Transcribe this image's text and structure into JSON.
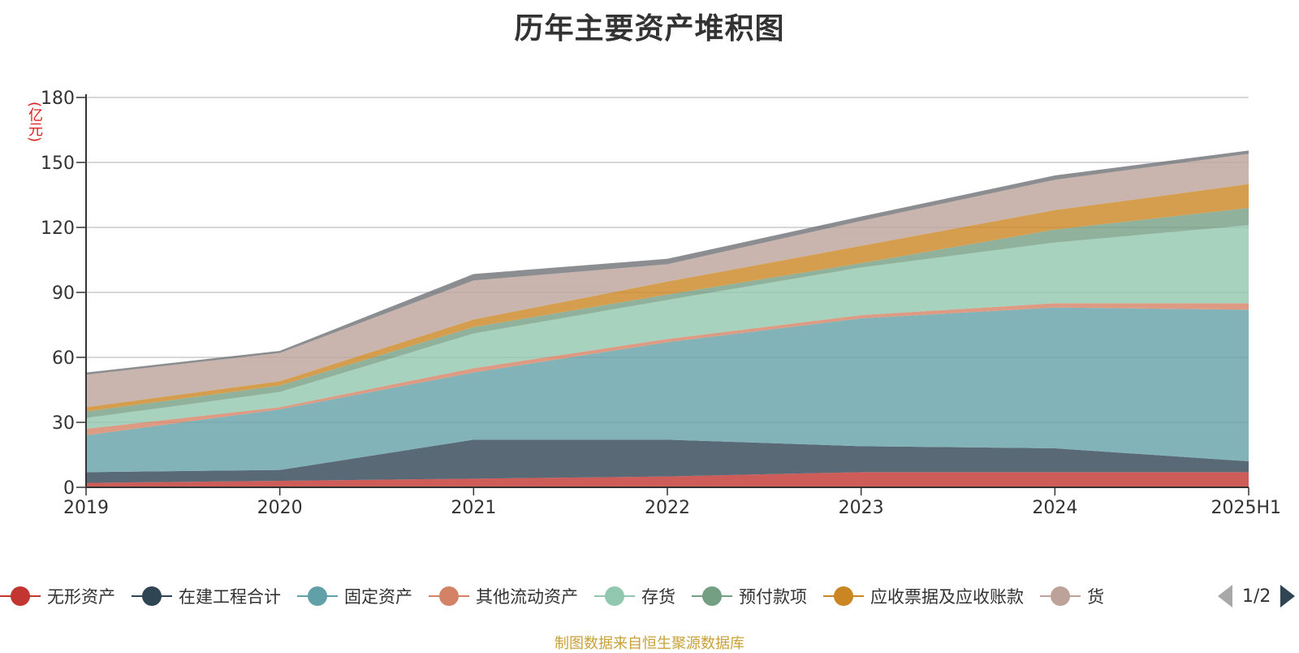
{
  "title": "历年主要资产堆积图",
  "unit_label": "(亿元)",
  "source_note": "制图数据来自恒生聚源数据库",
  "pager": {
    "text": "1/2"
  },
  "chart_data": {
    "type": "area",
    "stacked": true,
    "title": "历年主要资产堆积图",
    "ylabel": "(亿元)",
    "ylim": [
      0,
      180
    ],
    "yticks": [
      0,
      30,
      60,
      90,
      120,
      150,
      180
    ],
    "grid": true,
    "legend_position": "bottom",
    "categories": [
      "2019",
      "2020",
      "2021",
      "2022",
      "2023",
      "2024",
      "2025H1"
    ],
    "series": [
      {
        "name": "无形资产",
        "color": "#c23531",
        "values": [
          2,
          3,
          4,
          5,
          7,
          7,
          7
        ]
      },
      {
        "name": "在建工程合计",
        "color": "#2f4554",
        "values": [
          5,
          5,
          18,
          17,
          12,
          11,
          5
        ]
      },
      {
        "name": "固定资产",
        "color": "#61a0a8",
        "values": [
          17,
          28,
          31,
          45,
          59,
          65,
          70
        ]
      },
      {
        "name": "其他流动资产",
        "color": "#d48265",
        "values": [
          3,
          1,
          2,
          1.5,
          1.5,
          2,
          3
        ]
      },
      {
        "name": "存货",
        "color": "#91c7ae",
        "values": [
          5,
          7,
          16,
          18,
          22,
          28,
          36
        ]
      },
      {
        "name": "预付款项",
        "color": "#749f83",
        "values": [
          3,
          3,
          3,
          2.5,
          2,
          6,
          8
        ]
      },
      {
        "name": "应收票据及应收账款",
        "color": "#ca8622",
        "values": [
          2,
          2,
          3.5,
          6,
          8,
          9,
          11
        ]
      },
      {
        "name": "货",
        "color": "#bda29a",
        "values": [
          15,
          13,
          18,
          8,
          11.5,
          14,
          14
        ]
      },
      {
        "name": "",
        "color": "#6e7074",
        "values": [
          1,
          1,
          3,
          2.5,
          2,
          2,
          1.5
        ]
      }
    ]
  }
}
